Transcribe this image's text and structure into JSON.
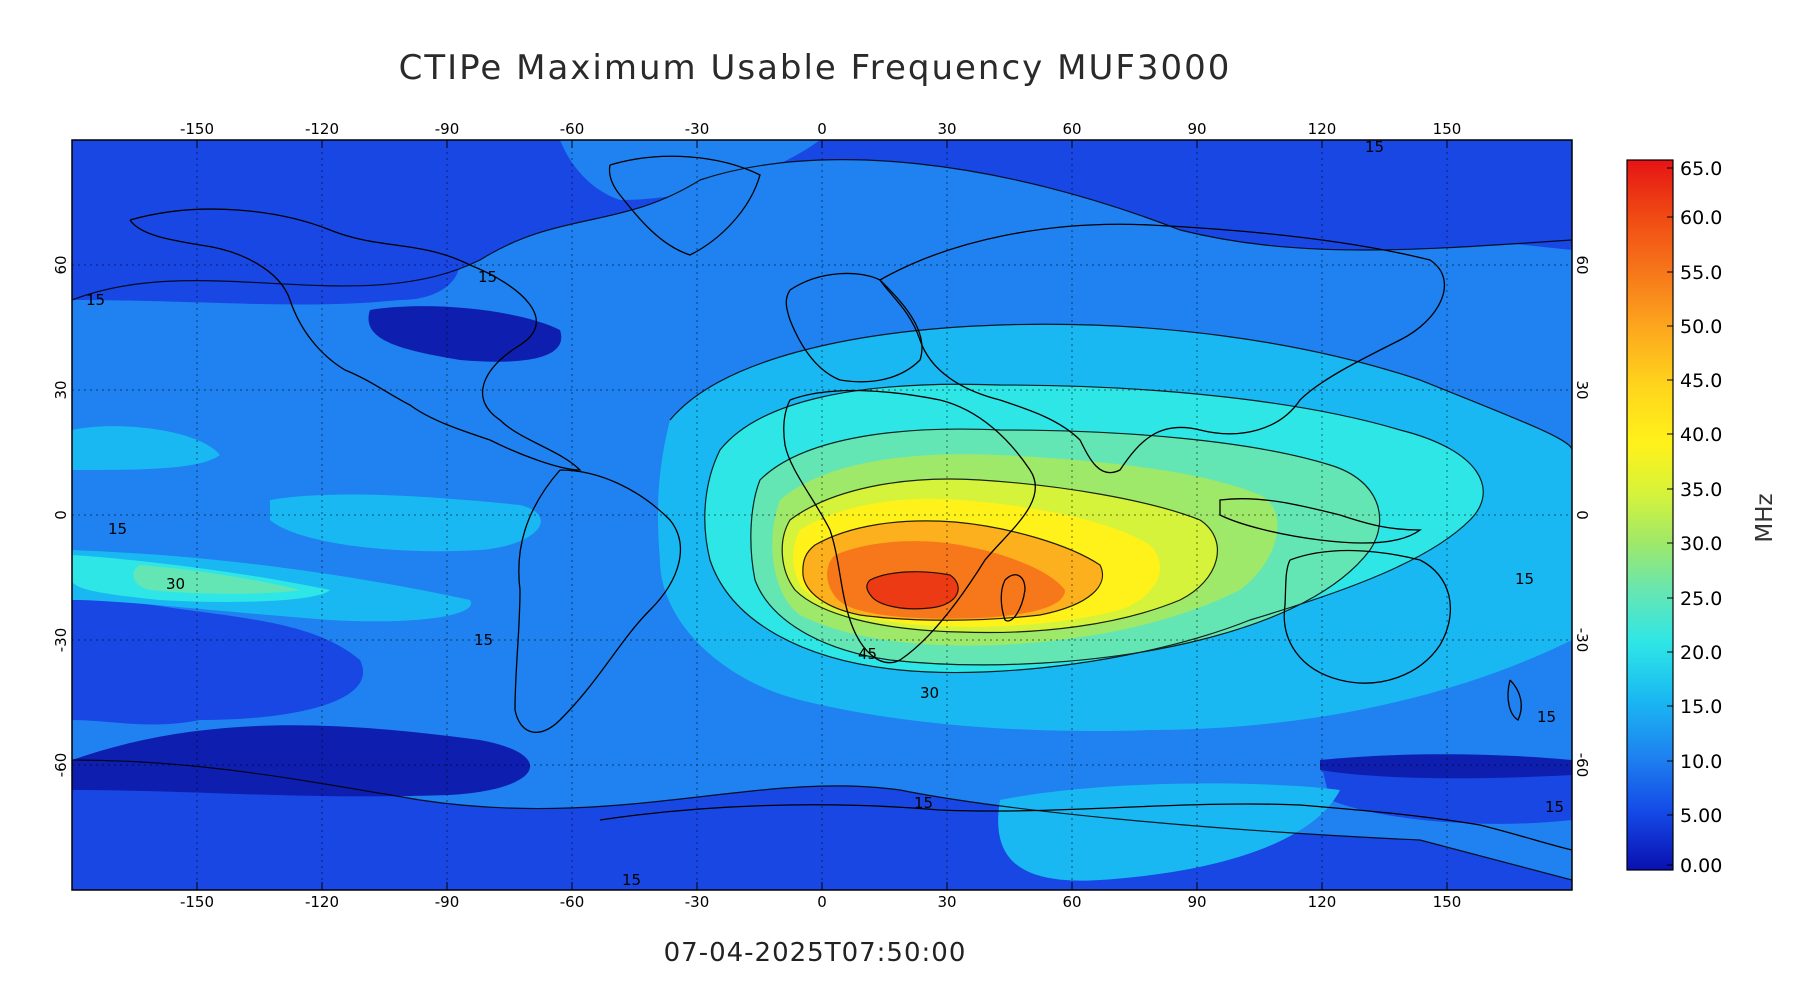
{
  "title": "CTIPe Maximum Usable Frequency MUF3000",
  "timestamp": "07-04-2025T07:50:00",
  "colorbar": {
    "unit_label": "MHz",
    "tick_labels": [
      "65.0",
      "60.0",
      "55.0",
      "50.0",
      "45.0",
      "40.0",
      "35.0",
      "30.0",
      "25.0",
      "20.0",
      "15.0",
      "10.0",
      "5.00",
      "0.00"
    ],
    "colors": [
      "#e61e14",
      "#f04a14",
      "#f7781a",
      "#fda91e",
      "#ffd61c",
      "#fff21a",
      "#d5f33a",
      "#9ee86a",
      "#64e6b4",
      "#2ee6e6",
      "#1ab8f2",
      "#1e82f0",
      "#1448e6",
      "#0a10b0"
    ]
  },
  "axes": {
    "lon_ticks": [
      "-150",
      "-120",
      "-90",
      "-60",
      "-30",
      "0",
      "30",
      "60",
      "90",
      "120",
      "150"
    ],
    "lat_ticks": [
      "60",
      "30",
      "0",
      "-30",
      "-60"
    ]
  },
  "contour_labels": [
    "15",
    "15",
    "30",
    "15",
    "45",
    "30",
    "15",
    "15",
    "15",
    "15",
    "15",
    "15",
    "15"
  ],
  "map_colors": {
    "level_0": "#0e1fb0",
    "level_10": "#1847e4",
    "level_15": "#1f82f0",
    "level_20": "#1ab8f2",
    "level_25": "#2fe6e6",
    "level_30": "#64e6b4",
    "level_35": "#9ee86a",
    "level_40": "#d5f33a",
    "level_45": "#fff21a",
    "level_50": "#fdb01e",
    "level_55": "#f7781a",
    "level_60": "#ec3a14",
    "level_65": "#e61e14"
  }
}
